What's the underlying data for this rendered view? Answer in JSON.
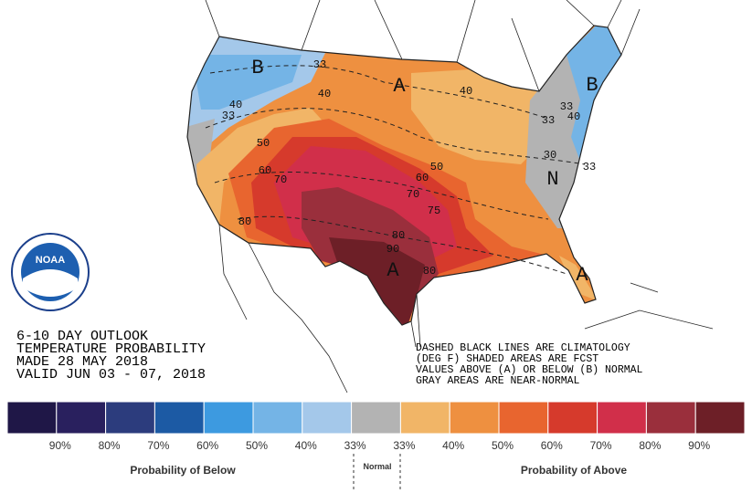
{
  "map": {
    "logo_text": "NOAA",
    "region_letters": [
      "B",
      "A",
      "B",
      "N",
      "A",
      "A"
    ],
    "contour_labels": [
      "33",
      "40",
      "40",
      "33",
      "50",
      "60",
      "70",
      "60",
      "50",
      "70",
      "75",
      "80",
      "90",
      "80",
      "80",
      "40",
      "33",
      "33",
      "40",
      "30",
      "33"
    ]
  },
  "outlook": {
    "lines": [
      "6-10 DAY OUTLOOK",
      "TEMPERATURE PROBABILITY",
      "MADE  28 MAY 2018",
      "VALID  JUN 03 - 07, 2018"
    ]
  },
  "notes": {
    "lines": [
      "DASHED BLACK LINES ARE CLIMATOLOGY",
      "(DEG F) SHADED AREAS ARE FCST",
      "VALUES ABOVE (A) OR BELOW (B) NORMAL",
      "GRAY AREAS ARE NEAR-NORMAL"
    ]
  },
  "legend": {
    "colors": [
      "#1f1747",
      "#29205e",
      "#2c3c7d",
      "#1c5aa4",
      "#3d9ae0",
      "#74b4e6",
      "#a4c8ea",
      "#b3b3b3",
      "#f1b567",
      "#ee9040",
      "#e8652f",
      "#d63a2c",
      "#d12f4a",
      "#9a2f3c",
      "#6d1f27"
    ],
    "labels": [
      "90%",
      "80%",
      "70%",
      "60%",
      "50%",
      "40%",
      "33%",
      "33%",
      "40%",
      "50%",
      "60%",
      "70%",
      "80%",
      "90%"
    ],
    "below_title": "Probability of Below",
    "normal_title": "Normal",
    "above_title": "Probability of Above"
  }
}
